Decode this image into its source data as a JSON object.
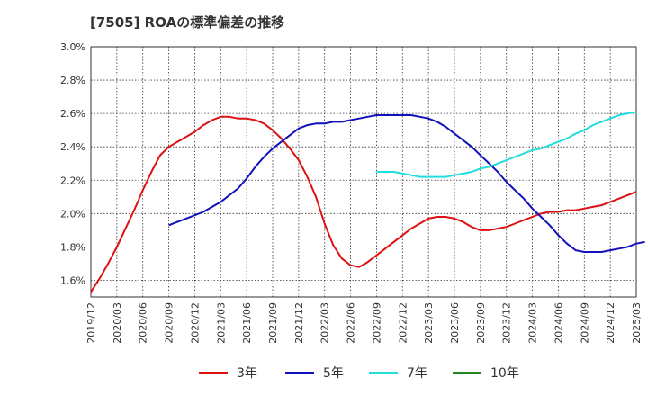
{
  "chart_data": {
    "type": "line",
    "title": "[7505]  ROAの標準偏差の推移",
    "xlabel": "",
    "ylabel": "",
    "ylim": [
      1.5,
      3.0
    ],
    "xlim": [
      "2019/12",
      "2025/03"
    ],
    "grid": true,
    "legend_position": "bottom",
    "yticks": [
      "1.6%",
      "1.8%",
      "2.0%",
      "2.2%",
      "2.4%",
      "2.6%",
      "2.8%",
      "3.0%"
    ],
    "xticks": [
      "2019/12",
      "2020/03",
      "2020/06",
      "2020/09",
      "2020/12",
      "2021/03",
      "2021/06",
      "2021/09",
      "2021/12",
      "2022/03",
      "2022/06",
      "2022/09",
      "2022/12",
      "2023/03",
      "2023/06",
      "2023/09",
      "2023/12",
      "2024/03",
      "2024/06",
      "2024/09",
      "2024/12",
      "2025/03"
    ],
    "series": [
      {
        "name": "3年",
        "color": "#dd1111",
        "start_month_index": 0,
        "values": [
          1.53,
          1.61,
          1.7,
          1.8,
          1.91,
          2.02,
          2.14,
          2.25,
          2.35,
          2.4,
          2.43,
          2.46,
          2.49,
          2.53,
          2.56,
          2.58,
          2.58,
          2.57,
          2.57,
          2.56,
          2.54,
          2.5,
          2.45,
          2.39,
          2.32,
          2.22,
          2.1,
          1.94,
          1.81,
          1.73,
          1.69,
          1.68,
          1.71,
          1.75,
          1.79,
          1.83,
          1.87,
          1.91,
          1.94,
          1.97,
          1.98,
          1.98,
          1.97,
          1.95,
          1.92,
          1.9,
          1.9,
          1.91,
          1.92,
          1.94,
          1.96,
          1.98,
          2.0,
          2.01,
          2.01,
          2.02,
          2.02,
          2.03,
          2.04,
          2.05,
          2.07,
          2.09,
          2.11,
          2.13
        ]
      },
      {
        "name": "5年",
        "color": "#1111bb",
        "start_month_index": 9,
        "values": [
          1.93,
          1.95,
          1.97,
          1.99,
          2.01,
          2.04,
          2.07,
          2.11,
          2.15,
          2.21,
          2.28,
          2.34,
          2.39,
          2.43,
          2.47,
          2.51,
          2.53,
          2.54,
          2.54,
          2.55,
          2.55,
          2.56,
          2.57,
          2.58,
          2.59,
          2.59,
          2.59,
          2.59,
          2.59,
          2.58,
          2.57,
          2.55,
          2.52,
          2.48,
          2.44,
          2.4,
          2.35,
          2.3,
          2.25,
          2.19,
          2.14,
          2.09,
          2.03,
          1.98,
          1.93,
          1.87,
          1.82,
          1.78,
          1.77,
          1.77,
          1.77,
          1.78,
          1.79,
          1.8,
          1.82,
          1.83
        ]
      },
      {
        "name": "7年",
        "color": "#22dddd",
        "start_month_index": 33,
        "values": [
          2.25,
          2.25,
          2.25,
          2.24,
          2.23,
          2.22,
          2.22,
          2.22,
          2.22,
          2.23,
          2.24,
          2.25,
          2.27,
          2.28,
          2.3,
          2.32,
          2.34,
          2.36,
          2.38,
          2.39,
          2.41,
          2.43,
          2.45,
          2.48,
          2.5,
          2.53,
          2.55,
          2.57,
          2.59,
          2.6,
          2.61
        ]
      },
      {
        "name": "10年",
        "color": "#228822",
        "start_month_index": 0,
        "values": []
      }
    ]
  }
}
